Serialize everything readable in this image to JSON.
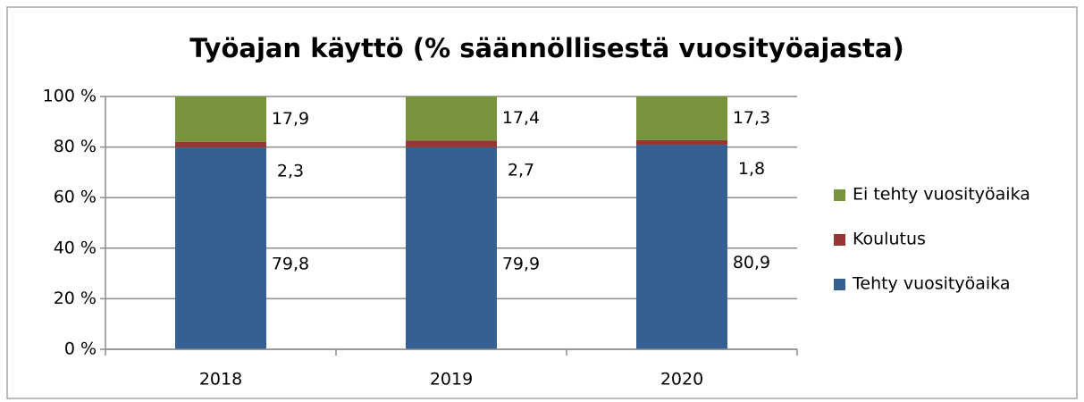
{
  "chart_data": {
    "type": "stacked-bar",
    "title": "Työajan käyttö (% säännöllisestä vuosityöajasta)",
    "categories": [
      "2018",
      "2019",
      "2020"
    ],
    "series": [
      {
        "name": "Tehty vuosityöaika",
        "color": "#376092",
        "values": [
          79.8,
          79.9,
          80.9
        ],
        "value_labels": [
          "79,8",
          "79,9",
          "80,9"
        ]
      },
      {
        "name": "Koulutus",
        "color": "#953735",
        "values": [
          2.3,
          2.7,
          1.8
        ],
        "value_labels": [
          "2,3",
          "2,7",
          "1,8"
        ]
      },
      {
        "name": "Ei tehty vuosityöaika",
        "color": "#77933c",
        "values": [
          17.9,
          17.4,
          17.3
        ],
        "value_labels": [
          "17,9",
          "17,4",
          "17,3"
        ]
      }
    ],
    "ylim": [
      0,
      100
    ],
    "yticks": [
      {
        "value": 0,
        "label": "0 %"
      },
      {
        "value": 20,
        "label": "20 %"
      },
      {
        "value": 40,
        "label": "40 %"
      },
      {
        "value": 60,
        "label": "60 %"
      },
      {
        "value": 80,
        "label": "80 %"
      },
      {
        "value": 100,
        "label": "100 %"
      }
    ],
    "grid": true,
    "legend": "right"
  }
}
